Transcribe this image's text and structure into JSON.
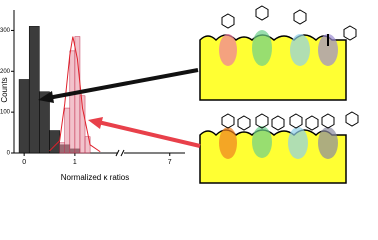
{
  "chart_data": {
    "type": "histogram",
    "y_label": "Counts",
    "x_label": "Normalized κ ratios",
    "ylim": [
      0,
      350
    ],
    "yticks": [
      0,
      100,
      200,
      300
    ],
    "xlim": [
      -0.2,
      1.85
    ],
    "xlim2": [
      6.1,
      7.3
    ],
    "xticks": [
      0,
      1,
      7
    ],
    "series": [
      {
        "color": "#3c3c3c",
        "bins": [
          -0.1,
          0.1,
          0.3,
          0.5,
          0.7,
          0.9,
          1.1
        ],
        "counts": [
          180,
          310,
          150,
          55,
          20,
          10
        ]
      },
      {
        "color": "#e88fa0",
        "bins": [
          0.7,
          0.8,
          0.9,
          1.0,
          1.1,
          1.2,
          1.3
        ],
        "counts": [
          25,
          110,
          250,
          285,
          140,
          40
        ]
      }
    ],
    "curve": {
      "color": "#e0202a",
      "x": [
        0.5,
        0.7,
        0.8,
        0.9,
        0.96,
        1.05,
        1.15,
        1.3,
        1.5
      ],
      "values": [
        5,
        30,
        120,
        240,
        285,
        230,
        110,
        20,
        3
      ]
    }
  }
}
